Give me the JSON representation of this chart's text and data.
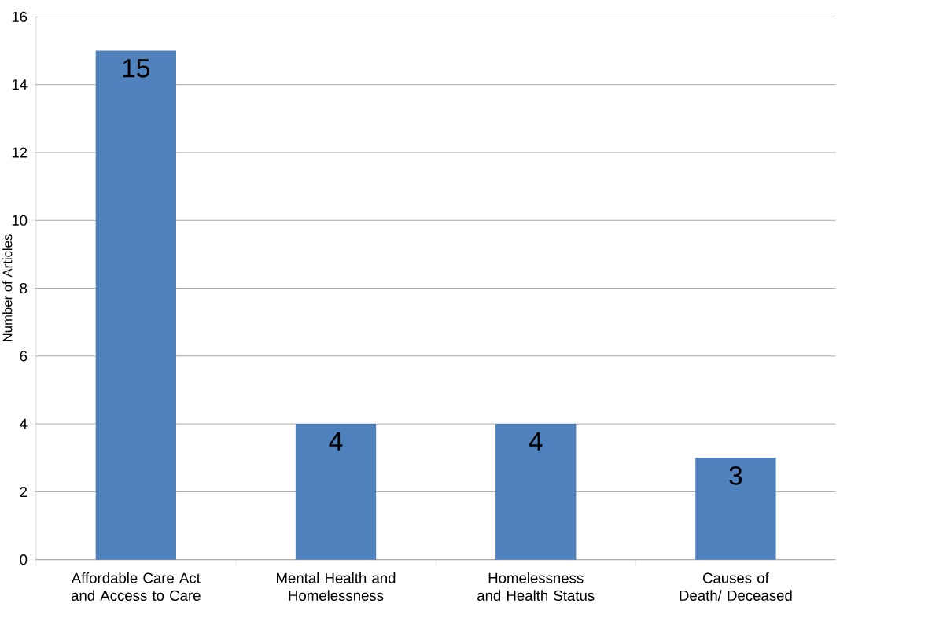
{
  "chart_data": {
    "type": "bar",
    "ylabel": "Number of Articles",
    "categories": [
      "Affordable Care Act and Access to Care",
      "Mental Health and Homelessness",
      "Homelessness and Health Status",
      "Causes of Death/ Deceased"
    ],
    "values": [
      15,
      4,
      4,
      3
    ],
    "color": "#4f81bd",
    "ylim": [
      0,
      16
    ],
    "yticks": [
      0,
      2,
      4,
      6,
      8,
      10,
      12,
      14,
      16
    ],
    "grid": "y",
    "data_labels": true
  }
}
